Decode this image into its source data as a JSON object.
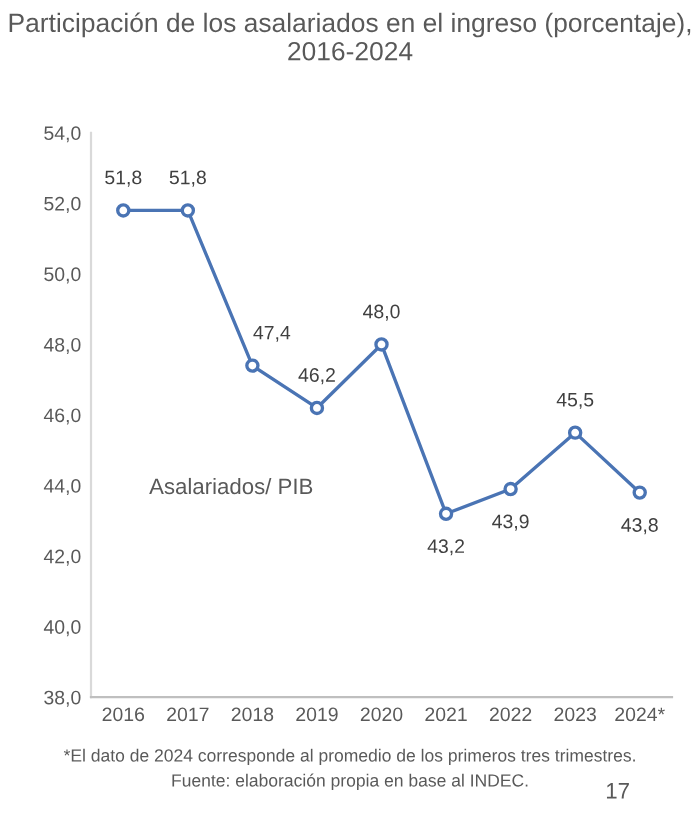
{
  "chart_data": {
    "type": "line",
    "title": "Participación de los asalariados en el ingreso (porcentaje),\n2016-2024",
    "categories": [
      "2016",
      "2017",
      "2018",
      "2019",
      "2020",
      "2021",
      "2022",
      "2023",
      "2024*"
    ],
    "series": [
      {
        "name": "Asalariados/ PIB",
        "color": "#4a74b4",
        "values": [
          51.8,
          51.8,
          47.4,
          46.2,
          48.0,
          43.2,
          43.9,
          45.5,
          43.8
        ],
        "value_labels": [
          "51,8",
          "51,8",
          "47,4",
          "46,2",
          "48,0",
          "43,2",
          "43,9",
          "45,5",
          "43,8"
        ]
      }
    ],
    "ylim": [
      38,
      54
    ],
    "yticks": [
      {
        "value": 38,
        "label": "38,0"
      },
      {
        "value": 40,
        "label": "40,0"
      },
      {
        "value": 42,
        "label": "42,0"
      },
      {
        "value": 44,
        "label": "44,0"
      },
      {
        "value": 46,
        "label": "46,0"
      },
      {
        "value": 48,
        "label": "48,0"
      },
      {
        "value": 50,
        "label": "50,0"
      },
      {
        "value": 52,
        "label": "52,0"
      },
      {
        "value": 54,
        "label": "54,0"
      }
    ],
    "marker": "circle",
    "line_style": "solid",
    "grid": false,
    "legend": false,
    "annotations": [
      "*El dato de 2024 corresponde al promedio de los primeros tres trimestres.",
      "Fuente: elaboración propia en base al INDEC.",
      "17"
    ]
  }
}
